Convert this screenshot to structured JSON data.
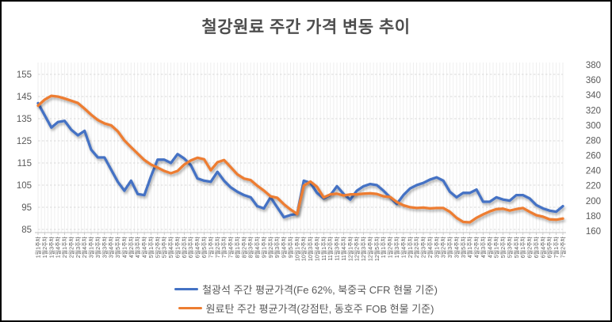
{
  "window": {
    "title": "철강원료 주간 가격 변동 추이"
  },
  "chart_data": {
    "type": "line",
    "title": "철강원료 주간 가격 변동 추이",
    "grid": true,
    "legend_position": "bottom",
    "left_axis": {
      "min": 85,
      "max": 160,
      "major_unit": 10,
      "ticks": [
        155,
        145,
        135,
        125,
        115,
        105,
        95,
        85
      ]
    },
    "right_axis": {
      "min": 160,
      "max": 380,
      "major_unit": 20,
      "ticks": [
        380,
        360,
        340,
        320,
        300,
        280,
        260,
        240,
        220,
        200,
        180,
        160
      ]
    },
    "x_labels": [
      "1월1주차",
      "1월2주차",
      "1월3주차",
      "1월4주차",
      "2월1주차",
      "2월2주차",
      "2월3주차",
      "2월4주차",
      "3월1주차",
      "3월2주차",
      "3월3주차",
      "3월4주차",
      "3월5주차",
      "4월1주차",
      "4월2주차",
      "4월3주차",
      "4월4주차",
      "5월1주차",
      "5월2주차",
      "5월3주차",
      "5월4주차",
      "6월1주차",
      "6월2주차",
      "6월3주차",
      "6월4주차",
      "6월5주차",
      "7월1주차",
      "7월2주차",
      "7월3주차",
      "7월4주차",
      "8월1주차",
      "8월2주차",
      "8월3주차",
      "8월4주차",
      "9월1주차",
      "9월2주차",
      "9월3주차",
      "9월4주차",
      "9월5주차",
      "10월1주차",
      "10월2주차",
      "10월3주차",
      "10월4주차",
      "11월1주차",
      "11월2주차",
      "11월3주차",
      "11월4주차",
      "12월1주차",
      "12월2주차",
      "12월3주차",
      "12월4주차",
      "12월5주차",
      "1월1주차",
      "1월2주차",
      "1월3주차",
      "1월4주차",
      "2월1주차",
      "2월2주차",
      "2월3주차",
      "2월4주차",
      "3월1주차",
      "3월2주차",
      "3월3주차",
      "3월4주차",
      "3월5주차",
      "4월1주차",
      "4월2주차",
      "4월3주차",
      "4월4주차",
      "5월1주차",
      "5월2주차",
      "5월3주차",
      "5월4주차",
      "6월1주차",
      "6월2주차",
      "6월3주차",
      "6월4주차",
      "6월5주차",
      "7월1주차",
      "7월2주차"
    ],
    "series": [
      {
        "name": "철광석 주간 평균가격(Fe 62%, 북중국 CFR 현물 기준)",
        "id": "iron-ore",
        "axis": "left",
        "color": "#4472C4",
        "values": [
          142,
          136.5,
          131,
          133.5,
          134,
          130,
          127.5,
          129.5,
          121,
          117.5,
          117.5,
          112,
          106.5,
          102.5,
          107,
          101,
          100.5,
          109,
          116.5,
          116.5,
          115,
          119,
          117,
          114,
          108,
          107,
          106.5,
          111,
          107,
          104,
          102,
          100.5,
          99.5,
          95.5,
          94.5,
          99.5,
          95,
          90.5,
          91.5,
          92,
          107,
          106,
          101.5,
          99,
          100.5,
          104.5,
          101,
          98.5,
          102.5,
          104.5,
          105.5,
          105,
          102.5,
          99.5,
          96.5,
          100.5,
          103.5,
          105,
          106,
          107.5,
          108.5,
          107,
          102,
          99.5,
          101.5,
          101.5,
          103,
          97.5,
          97.5,
          99.5,
          98.5,
          98,
          100.5,
          100.5,
          99,
          96,
          94.5,
          93.5,
          93,
          95.5
        ]
      },
      {
        "name": "원료탄 주간 평균가격(강점탄, 동호주 FOB 현물 기준)",
        "id": "coking-coal",
        "axis": "right",
        "color": "#ED7D31",
        "values": [
          326,
          334,
          339,
          338,
          335.5,
          332.5,
          329.5,
          322,
          314,
          307,
          302.5,
          300,
          292,
          280,
          271,
          262.5,
          254,
          248,
          244,
          239.5,
          236.5,
          239.5,
          248,
          253.5,
          257,
          255,
          240.5,
          251,
          254,
          244.5,
          235,
          229.5,
          227.5,
          220,
          213.5,
          206,
          204,
          195.5,
          188.5,
          182.5,
          220,
          225.5,
          218.5,
          204.5,
          208.5,
          209.5,
          207,
          208.5,
          208.5,
          209.5,
          210,
          209,
          206,
          205,
          198.5,
          194,
          191.5,
          190.5,
          191,
          190,
          190.5,
          190.5,
          185.5,
          177.5,
          172,
          171.5,
          177.5,
          182,
          186,
          189,
          189.5,
          187,
          189,
          190.5,
          185.5,
          181,
          179,
          175.5,
          175,
          176.5
        ]
      }
    ],
    "colors": {
      "grid_vertical": "#ededed",
      "grid_horizontal": "#d9d9d9",
      "axis_line": "#bfbfbf",
      "tick_label": "#595959",
      "title": "#4d4d4d"
    }
  }
}
